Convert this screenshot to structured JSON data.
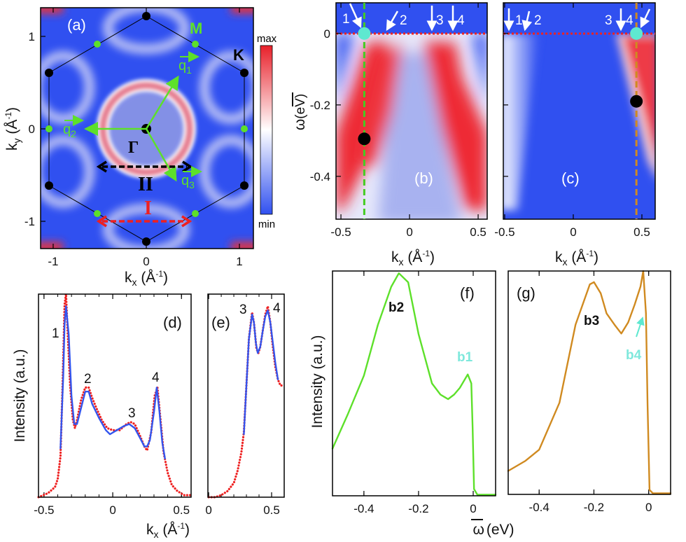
{
  "figure": {
    "kx_label": {
      "symbol": "k",
      "sub": "x",
      "open": " (Å",
      "sup": "-1",
      "close": ")"
    },
    "ky_label": {
      "symbol": "k",
      "sub": "y",
      "open": " (Å",
      "sup": "-1",
      "close": ")"
    },
    "omega_label": {
      "symbol": "ω",
      "unit": "(eV)"
    },
    "intensity_label": "Intensity (a.u.)",
    "colorbar": {
      "max": "max",
      "min": "min",
      "colors": [
        "#e8202a",
        "#ffffff",
        "#3050f0"
      ]
    }
  },
  "chart_data": [
    {
      "panel": "a",
      "type": "heatmap",
      "label": "(a)",
      "xlabel": "kx (Å-1)",
      "ylabel": "ky (Å-1)",
      "xticks": [
        -1,
        0,
        1
      ],
      "yticks": [
        -1,
        0,
        1
      ],
      "annotations": {
        "M": "M",
        "K": "K",
        "Gamma": "Γ",
        "II": "II",
        "I": "I",
        "q": "q",
        "q1": "1",
        "q2": "2",
        "q3": "3"
      },
      "colors": {
        "bz_points_K": "#000000",
        "bz_points_M": "#5de02a",
        "q_vectors": "#5de02a",
        "arrow_II": "#000000",
        "arrow_I": "#ee2020"
      }
    },
    {
      "panel": "b",
      "type": "heatmap",
      "label": "(b)",
      "xlabel": "kx (Å-1)",
      "ylabel": "ω (eV)",
      "xticks": [
        -0.5,
        0,
        0.5
      ],
      "yticks": [
        0,
        -0.2,
        -0.4
      ],
      "arrow_labels": [
        "1",
        "2",
        "3",
        "4"
      ],
      "cut_kx": -0.33,
      "cut_color": "#44cc22",
      "markers": [
        {
          "kx": -0.33,
          "omega": 0,
          "color": "#5ee8d0"
        },
        {
          "kx": -0.33,
          "omega": -0.295,
          "color": "#000000"
        }
      ]
    },
    {
      "panel": "c",
      "type": "heatmap",
      "label": "(c)",
      "xlabel": "kx (Å-1)",
      "xticks": [
        -0.5,
        0,
        0.5
      ],
      "yticks": [
        0,
        -0.2,
        -0.4
      ],
      "arrow_labels": [
        "1",
        "2",
        "3",
        "4"
      ],
      "cut_kx": 0.46,
      "cut_color": "#d08a20",
      "markers": [
        {
          "kx": 0.46,
          "omega": 0,
          "color": "#5ee8d0"
        },
        {
          "kx": 0.46,
          "omega": -0.19,
          "color": "#000000"
        }
      ]
    },
    {
      "panel": "d",
      "type": "line",
      "label": "(d)",
      "xlabel": "kx (Å-1)",
      "ylabel": "Intensity (a.u.)",
      "xticks": [
        -0.5,
        0,
        0.5
      ],
      "peak_labels": [
        "1",
        "2",
        "3",
        "4"
      ],
      "series": [
        {
          "style": "dots",
          "color": "#ee2222",
          "x": [
            -0.54,
            -0.47,
            -0.42,
            -0.4,
            -0.38,
            -0.365,
            -0.35,
            -0.34,
            -0.33,
            -0.31,
            -0.29,
            -0.275,
            -0.26,
            -0.23,
            -0.2,
            -0.175,
            -0.15,
            -0.12,
            -0.08,
            -0.04,
            0,
            0.05,
            0.1,
            0.13,
            0.16,
            0.2,
            0.23,
            0.25,
            0.28,
            0.305,
            0.325,
            0.345,
            0.37,
            0.4,
            0.43,
            0.47,
            0.52,
            0.57
          ],
          "y": [
            0.0,
            0.02,
            0.05,
            0.09,
            0.2,
            0.55,
            0.95,
            1.0,
            0.85,
            0.55,
            0.38,
            0.34,
            0.38,
            0.48,
            0.54,
            0.54,
            0.49,
            0.44,
            0.38,
            0.34,
            0.33,
            0.33,
            0.36,
            0.37,
            0.36,
            0.3,
            0.25,
            0.23,
            0.32,
            0.5,
            0.54,
            0.4,
            0.22,
            0.12,
            0.06,
            0.03,
            0.01,
            0.01
          ]
        },
        {
          "style": "line",
          "color": "#3355ee",
          "x": [
            -0.38,
            -0.36,
            -0.35,
            -0.34,
            -0.32,
            -0.3,
            -0.28,
            -0.26,
            -0.23,
            -0.2,
            -0.175,
            -0.15,
            -0.1,
            -0.05,
            -0.02,
            0.03,
            0.08,
            0.12,
            0.16,
            0.2,
            0.23,
            0.25,
            0.27,
            0.3,
            0.32,
            0.34,
            0.36,
            0.38
          ],
          "y": [
            0.24,
            0.6,
            0.85,
            0.94,
            0.8,
            0.5,
            0.36,
            0.36,
            0.44,
            0.52,
            0.52,
            0.46,
            0.39,
            0.33,
            0.31,
            0.33,
            0.35,
            0.36,
            0.34,
            0.29,
            0.25,
            0.25,
            0.28,
            0.42,
            0.54,
            0.42,
            0.27,
            0.19
          ]
        }
      ]
    },
    {
      "panel": "e",
      "type": "line",
      "label": "(e)",
      "xticks": [
        0,
        0.5
      ],
      "peak_labels": [
        "3",
        "4"
      ],
      "series": [
        {
          "style": "dots",
          "color": "#ee2222",
          "x": [
            0,
            0.05,
            0.1,
            0.15,
            0.2,
            0.23,
            0.26,
            0.28,
            0.3,
            0.32,
            0.345,
            0.36,
            0.38,
            0.395,
            0.41,
            0.43,
            0.45,
            0.47,
            0.49,
            0.51,
            0.53,
            0.55,
            0.57,
            0.59
          ],
          "y": [
            0.0,
            0.0,
            0.01,
            0.03,
            0.07,
            0.13,
            0.22,
            0.32,
            0.55,
            0.78,
            0.91,
            0.86,
            0.73,
            0.71,
            0.74,
            0.82,
            0.9,
            0.94,
            0.86,
            0.74,
            0.64,
            0.58,
            0.55,
            0.55
          ]
        },
        {
          "style": "line",
          "color": "#3355ee",
          "x": [
            0.28,
            0.3,
            0.32,
            0.345,
            0.36,
            0.375,
            0.39,
            0.41,
            0.43,
            0.45,
            0.47,
            0.49,
            0.51,
            0.53,
            0.55
          ],
          "y": [
            0.31,
            0.55,
            0.78,
            0.9,
            0.86,
            0.76,
            0.71,
            0.74,
            0.82,
            0.89,
            0.92,
            0.86,
            0.76,
            0.66,
            0.58
          ]
        }
      ]
    },
    {
      "panel": "f",
      "type": "line",
      "label": "(f)",
      "xlabel": "ω (eV)",
      "ylabel": "Intensity (a.u.)",
      "xticks": [
        -0.4,
        -0.2,
        0
      ],
      "peak_labels": {
        "b2": "b2",
        "b1": "b1"
      },
      "series": [
        {
          "style": "line",
          "color": "#5de02a",
          "x": [
            -0.515,
            -0.46,
            -0.4,
            -0.349,
            -0.3,
            -0.272,
            -0.238,
            -0.2,
            -0.151,
            -0.12,
            -0.092,
            -0.07,
            -0.049,
            -0.02,
            -0.007,
            -0.002,
            0.003,
            0.015,
            0.082
          ],
          "y": [
            0.21,
            0.36,
            0.535,
            0.76,
            0.93,
            0.99,
            0.95,
            0.72,
            0.5,
            0.45,
            0.43,
            0.45,
            0.48,
            0.54,
            0.5,
            0.3,
            0.03,
            0.005,
            0.005
          ]
        }
      ]
    },
    {
      "panel": "g",
      "type": "line",
      "label": "(g)",
      "xlabel": "ω (eV)",
      "xticks": [
        -0.4,
        -0.2,
        0
      ],
      "peak_labels": {
        "b3": "b3",
        "b4": "b4"
      },
      "series": [
        {
          "style": "line",
          "color": "#d08a20",
          "x": [
            -0.513,
            -0.45,
            -0.4,
            -0.326,
            -0.267,
            -0.215,
            -0.2,
            -0.175,
            -0.154,
            -0.125,
            -0.1,
            -0.075,
            -0.051,
            -0.03,
            -0.02,
            -0.01,
            -0.004,
            0.003,
            0.015,
            0.08
          ],
          "y": [
            0.105,
            0.15,
            0.2,
            0.41,
            0.76,
            0.94,
            0.95,
            0.9,
            0.81,
            0.76,
            0.72,
            0.77,
            0.85,
            0.93,
            1.0,
            0.81,
            0.4,
            0.02,
            0.005,
            0.005
          ]
        }
      ]
    }
  ]
}
